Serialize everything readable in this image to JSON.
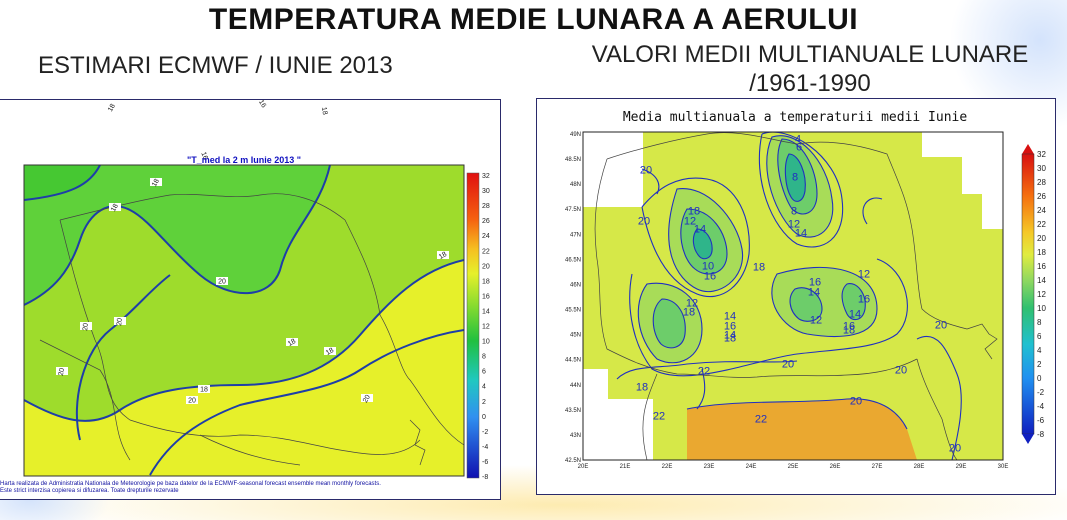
{
  "header": {
    "title": "TEMPERATURA MEDIE LUNARA A AERULUI",
    "left_subtitle": "ESTIMARI ECMWF / IUNIE 2013",
    "right_subtitle_line1": "VALORI MEDII MULTIANUALE LUNARE",
    "right_subtitle_line2": "/1961-1990"
  },
  "left_map": {
    "title": "\"T_med la 2 m Iunie 2013 \"",
    "credit_line1": "Harta realizata de Administratia Nationala de Meteorologie pe baza datelor de la ECMWF-seasonal forecast ensemble mean monthly forecasts.",
    "credit_line2": "Este strict interzisa copierea si difuzarea. Toate drepturile rezervate",
    "colorbar_labels": [
      "32",
      "30",
      "28",
      "26",
      "24",
      "22",
      "20",
      "18",
      "16",
      "14",
      "12",
      "10",
      "8",
      "6",
      "4",
      "2",
      "0",
      "-2",
      "-4",
      "-6",
      "-8"
    ],
    "contour_labels": [
      "18",
      "16",
      "16",
      "18",
      "20",
      "20",
      "18",
      "18",
      "18",
      "18",
      "20",
      "20",
      "20",
      "18",
      "18",
      "20"
    ],
    "colors": {
      "cool": "#5fd13a",
      "mid": "#9edc2c",
      "warm": "#e6f02a",
      "contour": "#1e3ea8"
    }
  },
  "right_map": {
    "title": "Media multianuala a temperaturii medii Iunie",
    "y_ticks": [
      "49N",
      "48.5N",
      "48N",
      "47.5N",
      "47N",
      "46.5N",
      "46N",
      "45.5N",
      "45N",
      "44.5N",
      "44N",
      "43.5N",
      "43N",
      "42.5N"
    ],
    "x_ticks": [
      "20E",
      "21E",
      "22E",
      "23E",
      "24E",
      "25E",
      "26E",
      "27E",
      "28E",
      "29E",
      "30E"
    ],
    "colorbar_labels": [
      "32",
      "30",
      "28",
      "26",
      "24",
      "22",
      "20",
      "18",
      "16",
      "14",
      "12",
      "10",
      "8",
      "6",
      "4",
      "2",
      "0",
      "-2",
      "-4",
      "-6",
      "-8"
    ],
    "contour_labels": [
      "20",
      "20",
      "18",
      "12",
      "14",
      "10",
      "16",
      "18",
      "4",
      "6",
      "8",
      "8",
      "12",
      "14",
      "16",
      "14",
      "12",
      "16",
      "12",
      "14",
      "16",
      "18",
      "12",
      "18",
      "14",
      "16",
      "14",
      "18",
      "20",
      "20",
      "20",
      "18",
      "22",
      "20",
      "22",
      "22",
      "20"
    ],
    "colors": {
      "base": "#d6e848",
      "warm": "#eaa830",
      "cool": "#6dcd6a",
      "contour": "#2030c0"
    }
  }
}
